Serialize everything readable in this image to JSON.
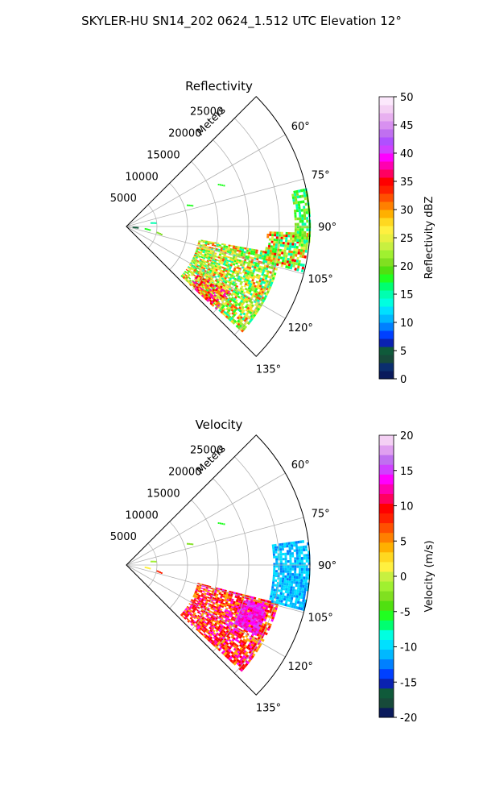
{
  "figure": {
    "suptitle": "SKYLER-HU  SN14_202  0624_1.512 UTC Elevation 12°"
  },
  "chart_data": [
    {
      "type": "heatmap",
      "projection": "polar-sector",
      "title": "Reflectivity",
      "radial_label": "Meters",
      "r_ticks": [
        5000,
        10000,
        15000,
        20000,
        25000
      ],
      "r_max": 30000,
      "theta_ticks": [
        "60°",
        "75°",
        "90°",
        "105°",
        "120°",
        "135°"
      ],
      "theta_tick_values": [
        60,
        75,
        90,
        105,
        120,
        135
      ],
      "theta_range": [
        45,
        135
      ],
      "colorbar": {
        "label": "Reflectivity dBZ",
        "vmin": 0,
        "vmax": 50,
        "ticks": [
          0,
          5,
          10,
          15,
          20,
          25,
          30,
          35,
          40,
          45,
          50
        ],
        "colors": [
          "#0a1a5c",
          "#0b2e6e",
          "#174a3a",
          "#0f5a3a",
          "#0a22b0",
          "#0040ff",
          "#0080ff",
          "#00b8ff",
          "#00e0ff",
          "#00ffe0",
          "#00ffb0",
          "#00ff70",
          "#20ff20",
          "#50e010",
          "#80e020",
          "#a0f030",
          "#c8f040",
          "#e8f040",
          "#fff040",
          "#ffd820",
          "#ffb000",
          "#ff8000",
          "#ff5000",
          "#ff2000",
          "#ff0000",
          "#ff0060",
          "#ff00b0",
          "#ff00ff",
          "#d040ff",
          "#b050ff",
          "#c070f0",
          "#d890f0",
          "#e8b0f0",
          "#f4d0f4",
          "#fce8fc"
        ]
      },
      "echo_regions": [
        {
          "az": [
            100,
            132
          ],
          "r": [
            12000,
            25500
          ],
          "levels": [
            15,
            18,
            20,
            22,
            25,
            28,
            32
          ]
        },
        {
          "az": [
            92,
            104
          ],
          "r": [
            23000,
            29500
          ],
          "levels": [
            15,
            18,
            22,
            25,
            30,
            35
          ]
        },
        {
          "az": [
            78,
            95
          ],
          "r": [
            27500,
            29800
          ],
          "levels": [
            15,
            18,
            20,
            22
          ]
        },
        {
          "az": [
            122,
            132
          ],
          "r": [
            14000,
            20000
          ],
          "levels": [
            25,
            30,
            35,
            38
          ]
        }
      ],
      "speckles": [
        {
          "az": 65,
          "r": 16500,
          "level": 18
        },
        {
          "az": 70,
          "r": 10500,
          "level": 18
        },
        {
          "az": 80,
          "r": 4000,
          "level": 15
        },
        {
          "az": 95,
          "r": 3000,
          "level": 18
        },
        {
          "az": 100,
          "r": 5000,
          "level": 20
        },
        {
          "az": 91,
          "r": 1000,
          "level": 5
        }
      ]
    },
    {
      "type": "heatmap",
      "projection": "polar-sector",
      "title": "Velocity",
      "radial_label": "Meters",
      "r_ticks": [
        5000,
        10000,
        15000,
        20000,
        25000
      ],
      "r_max": 30000,
      "theta_ticks": [
        "60°",
        "75°",
        "90°",
        "105°",
        "120°",
        "135°"
      ],
      "theta_tick_values": [
        60,
        75,
        90,
        105,
        120,
        135
      ],
      "theta_range": [
        45,
        135
      ],
      "colorbar": {
        "label": "Velocity (m/s)",
        "vmin": -20,
        "vmax": 20,
        "ticks": [
          -20,
          -15,
          -10,
          -5,
          0,
          5,
          10,
          15,
          20
        ],
        "colors": [
          "#0a1a5c",
          "#174a3a",
          "#0f5a3a",
          "#0a22b0",
          "#0040ff",
          "#0080ff",
          "#00b8ff",
          "#00e0ff",
          "#00ffe0",
          "#00ff70",
          "#20ff20",
          "#50e010",
          "#80e020",
          "#a0f030",
          "#c8f040",
          "#fff040",
          "#ffd820",
          "#ffb000",
          "#ff8000",
          "#ff5000",
          "#ff2000",
          "#ff0000",
          "#ff0060",
          "#ff00b0",
          "#ff00ff",
          "#d040ff",
          "#c070f0",
          "#e0a0f0",
          "#f4d0f4"
        ]
      },
      "echo_regions": [
        {
          "az": [
            104,
            132
          ],
          "r": [
            12000,
            25500
          ],
          "levels": [
            4,
            6,
            8,
            9,
            10,
            12,
            14
          ]
        },
        {
          "az": [
            82,
            104
          ],
          "r": [
            24000,
            29800
          ],
          "levels": [
            -12,
            -11,
            -10,
            -9
          ]
        },
        {
          "az": [
            106,
            118
          ],
          "r": [
            20000,
            24000
          ],
          "levels": [
            12,
            14,
            15
          ]
        }
      ],
      "speckles": [
        {
          "az": 65,
          "r": 16500,
          "level": -5
        },
        {
          "az": 70,
          "r": 10500,
          "level": -3
        },
        {
          "az": 80,
          "r": 4000,
          "level": -2
        },
        {
          "az": 95,
          "r": 3000,
          "level": 2
        },
        {
          "az": 100,
          "r": 5000,
          "level": 8
        }
      ]
    }
  ]
}
